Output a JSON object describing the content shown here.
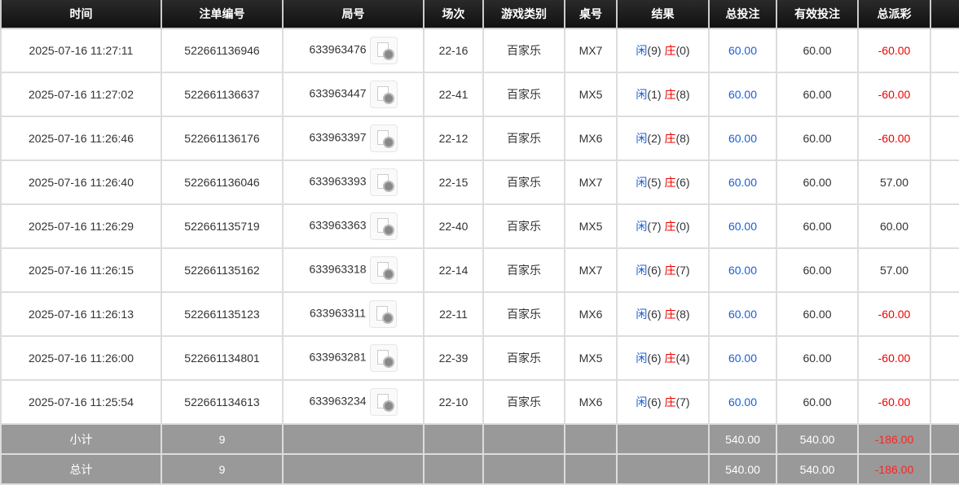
{
  "headers": [
    "时间",
    "注单编号",
    "局号",
    "场次",
    "游戏类别",
    "桌号",
    "结果",
    "总投注",
    "有效投注",
    "总派彩",
    ""
  ],
  "rows": [
    {
      "time": "2025-07-16 11:27:11",
      "bet_id": "522661136946",
      "round": "633963476",
      "session": "22-16",
      "game": "百家乐",
      "table": "MX7",
      "player": "闲",
      "player_score": "(9)",
      "banker": "庄",
      "banker_score": "(0)",
      "total_bet": "60.00",
      "valid_bet": "60.00",
      "payout": "-60.00",
      "neg": true
    },
    {
      "time": "2025-07-16 11:27:02",
      "bet_id": "522661136637",
      "round": "633963447",
      "session": "22-41",
      "game": "百家乐",
      "table": "MX5",
      "player": "闲",
      "player_score": "(1)",
      "banker": "庄",
      "banker_score": "(8)",
      "total_bet": "60.00",
      "valid_bet": "60.00",
      "payout": "-60.00",
      "neg": true
    },
    {
      "time": "2025-07-16 11:26:46",
      "bet_id": "522661136176",
      "round": "633963397",
      "session": "22-12",
      "game": "百家乐",
      "table": "MX6",
      "player": "闲",
      "player_score": "(2)",
      "banker": "庄",
      "banker_score": "(8)",
      "total_bet": "60.00",
      "valid_bet": "60.00",
      "payout": "-60.00",
      "neg": true
    },
    {
      "time": "2025-07-16 11:26:40",
      "bet_id": "522661136046",
      "round": "633963393",
      "session": "22-15",
      "game": "百家乐",
      "table": "MX7",
      "player": "闲",
      "player_score": "(5)",
      "banker": "庄",
      "banker_score": "(6)",
      "total_bet": "60.00",
      "valid_bet": "60.00",
      "payout": "57.00",
      "neg": false
    },
    {
      "time": "2025-07-16 11:26:29",
      "bet_id": "522661135719",
      "round": "633963363",
      "session": "22-40",
      "game": "百家乐",
      "table": "MX5",
      "player": "闲",
      "player_score": "(7)",
      "banker": "庄",
      "banker_score": "(0)",
      "total_bet": "60.00",
      "valid_bet": "60.00",
      "payout": "60.00",
      "neg": false
    },
    {
      "time": "2025-07-16 11:26:15",
      "bet_id": "522661135162",
      "round": "633963318",
      "session": "22-14",
      "game": "百家乐",
      "table": "MX7",
      "player": "闲",
      "player_score": "(6)",
      "banker": "庄",
      "banker_score": "(7)",
      "total_bet": "60.00",
      "valid_bet": "60.00",
      "payout": "57.00",
      "neg": false
    },
    {
      "time": "2025-07-16 11:26:13",
      "bet_id": "522661135123",
      "round": "633963311",
      "session": "22-11",
      "game": "百家乐",
      "table": "MX6",
      "player": "闲",
      "player_score": "(6)",
      "banker": "庄",
      "banker_score": "(8)",
      "total_bet": "60.00",
      "valid_bet": "60.00",
      "payout": "-60.00",
      "neg": true
    },
    {
      "time": "2025-07-16 11:26:00",
      "bet_id": "522661134801",
      "round": "633963281",
      "session": "22-39",
      "game": "百家乐",
      "table": "MX5",
      "player": "闲",
      "player_score": "(6)",
      "banker": "庄",
      "banker_score": "(4)",
      "total_bet": "60.00",
      "valid_bet": "60.00",
      "payout": "-60.00",
      "neg": true
    },
    {
      "time": "2025-07-16 11:25:54",
      "bet_id": "522661134613",
      "round": "633963234",
      "session": "22-10",
      "game": "百家乐",
      "table": "MX6",
      "player": "闲",
      "player_score": "(6)",
      "banker": "庄",
      "banker_score": "(7)",
      "total_bet": "60.00",
      "valid_bet": "60.00",
      "payout": "-60.00",
      "neg": true
    }
  ],
  "footer": [
    {
      "label": "小计",
      "count": "9",
      "total_bet": "540.00",
      "valid_bet": "540.00",
      "payout": "-186.00"
    },
    {
      "label": "总计",
      "count": "9",
      "total_bet": "540.00",
      "valid_bet": "540.00",
      "payout": "-186.00"
    }
  ],
  "colors": {
    "player": "#1a5fd6",
    "banker": "#e00000",
    "negative": "#e00000",
    "header_bg": "#111111",
    "footer_bg": "#999999"
  },
  "icons": {
    "replay": "video-file-icon"
  }
}
